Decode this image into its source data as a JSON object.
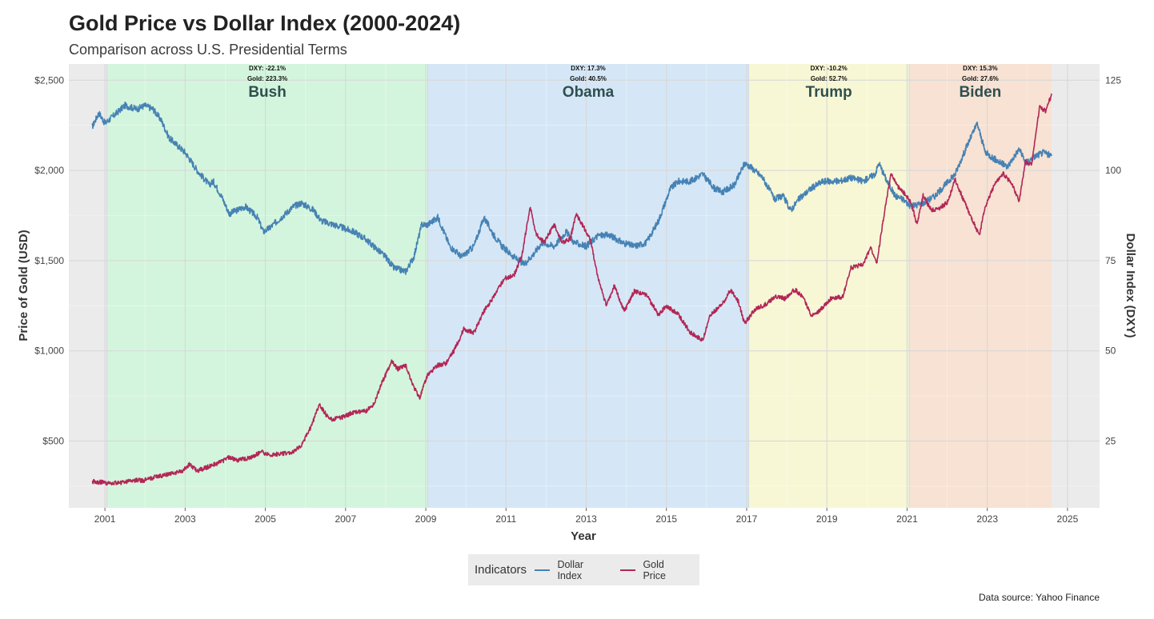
{
  "title": "Gold Price vs Dollar Index (2000-2024)",
  "subtitle": "Comparison across U.S. Presidential Terms",
  "caption": "Data source: Yahoo Finance",
  "legend": {
    "title": "Indicators",
    "items": [
      {
        "label": "Dollar Index",
        "color": "#4682b4"
      },
      {
        "label": "Gold Price",
        "color": "#b22756"
      }
    ]
  },
  "chart_data": {
    "type": "line",
    "xlabel": "Year",
    "ylabel_left": "Price of Gold (USD)",
    "ylabel_right": "Dollar Index (DXY)",
    "xlim": [
      2000.1,
      2025.8
    ],
    "ylim_left": [
      130,
      2590
    ],
    "ylim_right_scale": "DXY = Gold / 20",
    "x_ticks": [
      "2001",
      "2003",
      "2005",
      "2007",
      "2009",
      "2011",
      "2013",
      "2015",
      "2017",
      "2019",
      "2021",
      "2023",
      "2025"
    ],
    "y_left_ticks": [
      {
        "value": 500,
        "label": "$500"
      },
      {
        "value": 1000,
        "label": "$1,000"
      },
      {
        "value": 1500,
        "label": "$1,500"
      },
      {
        "value": 2000,
        "label": "$2,000"
      },
      {
        "value": 2500,
        "label": "$2,500"
      }
    ],
    "y_right_ticks": [
      {
        "value": 25,
        "label": "25"
      },
      {
        "value": 50,
        "label": "50"
      },
      {
        "value": 75,
        "label": "75"
      },
      {
        "value": 100,
        "label": "100"
      },
      {
        "value": 125,
        "label": "125"
      }
    ],
    "grid": true,
    "legend_position": "bottom",
    "terms": [
      {
        "name": "Bush",
        "start": 2001.05,
        "end": 2009.05,
        "color": "#d4f5dd",
        "dxy_change": "DXY: -22.1%",
        "gold_change": "Gold: 223.3%"
      },
      {
        "name": "Obama",
        "start": 2009.05,
        "end": 2017.05,
        "color": "#d5e7f6",
        "dxy_change": "DXY: 17.3%",
        "gold_change": "Gold: 40.5%"
      },
      {
        "name": "Trump",
        "start": 2017.05,
        "end": 2021.05,
        "color": "#f7f7d5",
        "dxy_change": "DXY: -10.2%",
        "gold_change": "Gold: 52.7%"
      },
      {
        "name": "Biden",
        "start": 2021.05,
        "end": 2024.6,
        "color": "#f7e2d3",
        "dxy_change": "DXY: 15.3%",
        "gold_change": "Gold: 27.6%"
      }
    ],
    "series": [
      {
        "name": "Dollar Index",
        "color": "#4682b4",
        "points": [
          [
            2000.68,
            112
          ],
          [
            2000.85,
            116
          ],
          [
            2001.0,
            113
          ],
          [
            2001.2,
            115
          ],
          [
            2001.5,
            118
          ],
          [
            2001.8,
            117
          ],
          [
            2002.0,
            118
          ],
          [
            2002.2,
            117
          ],
          [
            2002.4,
            114
          ],
          [
            2002.6,
            109
          ],
          [
            2002.9,
            106
          ],
          [
            2003.0,
            105
          ],
          [
            2003.3,
            100
          ],
          [
            2003.6,
            96
          ],
          [
            2003.7,
            97
          ],
          [
            2003.9,
            93
          ],
          [
            2004.1,
            88
          ],
          [
            2004.3,
            89
          ],
          [
            2004.5,
            90
          ],
          [
            2004.8,
            87
          ],
          [
            2004.95,
            83
          ],
          [
            2005.1,
            84
          ],
          [
            2005.4,
            87
          ],
          [
            2005.7,
            90
          ],
          [
            2005.9,
            91
          ],
          [
            2006.2,
            89
          ],
          [
            2006.4,
            86
          ],
          [
            2006.7,
            85
          ],
          [
            2006.95,
            84
          ],
          [
            2007.2,
            83
          ],
          [
            2007.5,
            81
          ],
          [
            2007.8,
            78
          ],
          [
            2008.0,
            76
          ],
          [
            2008.2,
            73
          ],
          [
            2008.5,
            72
          ],
          [
            2008.7,
            76
          ],
          [
            2008.9,
            85
          ],
          [
            2009.05,
            85
          ],
          [
            2009.3,
            87
          ],
          [
            2009.6,
            79
          ],
          [
            2009.9,
            76
          ],
          [
            2010.2,
            79
          ],
          [
            2010.45,
            87
          ],
          [
            2010.7,
            82
          ],
          [
            2010.9,
            79
          ],
          [
            2011.2,
            76
          ],
          [
            2011.45,
            74
          ],
          [
            2011.7,
            77
          ],
          [
            2011.9,
            80
          ],
          [
            2012.2,
            79
          ],
          [
            2012.5,
            83
          ],
          [
            2012.7,
            80
          ],
          [
            2013.0,
            79
          ],
          [
            2013.3,
            82
          ],
          [
            2013.6,
            82
          ],
          [
            2013.9,
            80
          ],
          [
            2014.2,
            79
          ],
          [
            2014.5,
            80
          ],
          [
            2014.8,
            86
          ],
          [
            2015.1,
            95
          ],
          [
            2015.3,
            97
          ],
          [
            2015.6,
            97
          ],
          [
            2015.9,
            99
          ],
          [
            2016.2,
            95
          ],
          [
            2016.4,
            94
          ],
          [
            2016.7,
            96
          ],
          [
            2016.95,
            102
          ],
          [
            2017.1,
            101
          ],
          [
            2017.4,
            98
          ],
          [
            2017.7,
            92
          ],
          [
            2017.9,
            93
          ],
          [
            2018.1,
            89
          ],
          [
            2018.3,
            92
          ],
          [
            2018.6,
            95
          ],
          [
            2018.9,
            97
          ],
          [
            2019.3,
            97
          ],
          [
            2019.6,
            98
          ],
          [
            2019.9,
            97
          ],
          [
            2020.2,
            99
          ],
          [
            2020.3,
            102
          ],
          [
            2020.5,
            97
          ],
          [
            2020.7,
            93
          ],
          [
            2020.9,
            92
          ],
          [
            2021.1,
            90
          ],
          [
            2021.4,
            91
          ],
          [
            2021.7,
            93
          ],
          [
            2021.95,
            96
          ],
          [
            2022.2,
            99
          ],
          [
            2022.5,
            107
          ],
          [
            2022.75,
            113
          ],
          [
            2022.95,
            105
          ],
          [
            2023.2,
            103
          ],
          [
            2023.5,
            101
          ],
          [
            2023.8,
            106
          ],
          [
            2023.95,
            102
          ],
          [
            2024.2,
            104
          ],
          [
            2024.4,
            105
          ],
          [
            2024.6,
            104
          ]
        ]
      },
      {
        "name": "Gold Price",
        "color": "#b22756",
        "points": [
          [
            2000.68,
            275
          ],
          [
            2000.9,
            272
          ],
          [
            2001.1,
            265
          ],
          [
            2001.4,
            270
          ],
          [
            2001.7,
            285
          ],
          [
            2001.95,
            280
          ],
          [
            2002.3,
            305
          ],
          [
            2002.6,
            315
          ],
          [
            2002.9,
            330
          ],
          [
            2003.1,
            370
          ],
          [
            2003.3,
            335
          ],
          [
            2003.6,
            360
          ],
          [
            2003.9,
            385
          ],
          [
            2004.1,
            410
          ],
          [
            2004.3,
            395
          ],
          [
            2004.6,
            405
          ],
          [
            2004.9,
            440
          ],
          [
            2005.1,
            425
          ],
          [
            2005.4,
            430
          ],
          [
            2005.7,
            440
          ],
          [
            2005.9,
            480
          ],
          [
            2006.1,
            560
          ],
          [
            2006.35,
            700
          ],
          [
            2006.6,
            620
          ],
          [
            2006.9,
            630
          ],
          [
            2007.2,
            660
          ],
          [
            2007.5,
            665
          ],
          [
            2007.7,
            700
          ],
          [
            2007.9,
            820
          ],
          [
            2008.15,
            940
          ],
          [
            2008.3,
            900
          ],
          [
            2008.5,
            920
          ],
          [
            2008.7,
            800
          ],
          [
            2008.85,
            740
          ],
          [
            2009.05,
            870
          ],
          [
            2009.3,
            920
          ],
          [
            2009.5,
            930
          ],
          [
            2009.7,
            1000
          ],
          [
            2009.95,
            1120
          ],
          [
            2010.2,
            1100
          ],
          [
            2010.45,
            1220
          ],
          [
            2010.7,
            1300
          ],
          [
            2010.95,
            1400
          ],
          [
            2011.2,
            1420
          ],
          [
            2011.4,
            1530
          ],
          [
            2011.6,
            1800
          ],
          [
            2011.75,
            1650
          ],
          [
            2011.95,
            1600
          ],
          [
            2012.2,
            1700
          ],
          [
            2012.4,
            1600
          ],
          [
            2012.6,
            1620
          ],
          [
            2012.75,
            1760
          ],
          [
            2012.95,
            1680
          ],
          [
            2013.1,
            1620
          ],
          [
            2013.3,
            1400
          ],
          [
            2013.5,
            1250
          ],
          [
            2013.7,
            1360
          ],
          [
            2013.95,
            1220
          ],
          [
            2014.2,
            1330
          ],
          [
            2014.5,
            1310
          ],
          [
            2014.8,
            1200
          ],
          [
            2015.0,
            1250
          ],
          [
            2015.3,
            1200
          ],
          [
            2015.6,
            1100
          ],
          [
            2015.9,
            1060
          ],
          [
            2016.1,
            1200
          ],
          [
            2016.4,
            1260
          ],
          [
            2016.6,
            1340
          ],
          [
            2016.8,
            1270
          ],
          [
            2016.95,
            1150
          ],
          [
            2017.2,
            1230
          ],
          [
            2017.5,
            1260
          ],
          [
            2017.7,
            1300
          ],
          [
            2017.95,
            1290
          ],
          [
            2018.2,
            1340
          ],
          [
            2018.4,
            1300
          ],
          [
            2018.6,
            1200
          ],
          [
            2018.8,
            1220
          ],
          [
            2019.1,
            1290
          ],
          [
            2019.4,
            1300
          ],
          [
            2019.6,
            1460
          ],
          [
            2019.9,
            1480
          ],
          [
            2020.1,
            1570
          ],
          [
            2020.25,
            1490
          ],
          [
            2020.4,
            1720
          ],
          [
            2020.6,
            1980
          ],
          [
            2020.8,
            1900
          ],
          [
            2020.95,
            1870
          ],
          [
            2021.1,
            1820
          ],
          [
            2021.25,
            1700
          ],
          [
            2021.4,
            1860
          ],
          [
            2021.6,
            1780
          ],
          [
            2021.8,
            1790
          ],
          [
            2022.0,
            1820
          ],
          [
            2022.2,
            1950
          ],
          [
            2022.4,
            1840
          ],
          [
            2022.6,
            1740
          ],
          [
            2022.8,
            1640
          ],
          [
            2022.95,
            1800
          ],
          [
            2023.2,
            1930
          ],
          [
            2023.4,
            1980
          ],
          [
            2023.6,
            1930
          ],
          [
            2023.8,
            1830
          ],
          [
            2023.95,
            2050
          ],
          [
            2024.1,
            2030
          ],
          [
            2024.3,
            2350
          ],
          [
            2024.45,
            2330
          ],
          [
            2024.6,
            2420
          ]
        ]
      }
    ]
  }
}
